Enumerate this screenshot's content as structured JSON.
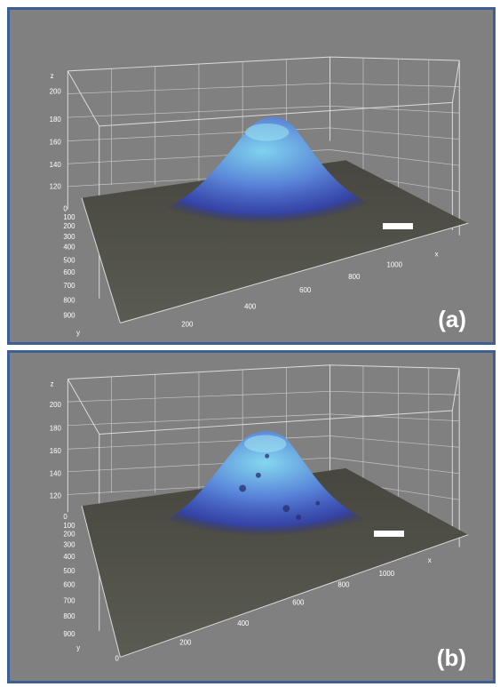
{
  "panels": [
    {
      "label": "(a)",
      "axes": {
        "z_label": "z",
        "y_label": "y",
        "x_label": "x",
        "z_ticks": [
          "200",
          "180",
          "160",
          "140",
          "120"
        ],
        "y_ticks": [
          "0",
          "100",
          "200",
          "300",
          "400",
          "500",
          "600",
          "700",
          "800",
          "900"
        ],
        "x_ticks": [
          "200",
          "400",
          "600",
          "800",
          "1000"
        ]
      }
    },
    {
      "label": "(b)",
      "axes": {
        "z_label": "z",
        "y_label": "y",
        "x_label": "x",
        "z_ticks": [
          "200",
          "180",
          "160",
          "140",
          "120"
        ],
        "y_ticks": [
          "0",
          "100",
          "200",
          "300",
          "400",
          "500",
          "600",
          "700",
          "800",
          "900"
        ],
        "x_ticks": [
          "0",
          "200",
          "400",
          "600",
          "800",
          "1000"
        ]
      }
    }
  ],
  "colors": {
    "panel_background": "#808080",
    "panel_border": "#3d5f92",
    "grid": "#d9d9d9",
    "surface_peak": "#6fb3e6",
    "surface_base": "#2b3cb0",
    "floor": "#4a4a44"
  }
}
